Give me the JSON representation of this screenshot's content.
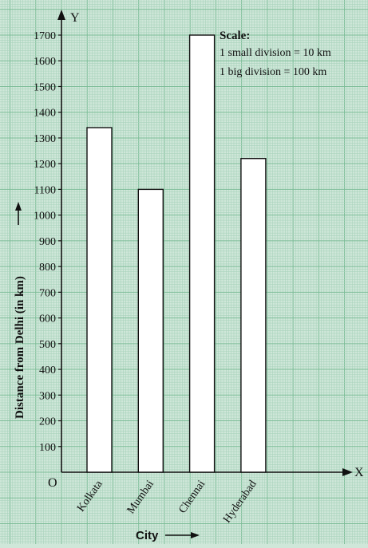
{
  "chart_data": {
    "type": "bar",
    "categories": [
      "Kolkata",
      "Mumbai",
      "Chennai",
      "Hyderabad"
    ],
    "values": [
      1340,
      1100,
      1700,
      1220
    ],
    "xlabel": "City",
    "ylabel": "Distance from Delhi (in km)",
    "ylim": [
      0,
      1700
    ],
    "yticks": [
      100,
      200,
      300,
      400,
      500,
      600,
      700,
      800,
      900,
      1000,
      1100,
      1200,
      1300,
      1400,
      1500,
      1600,
      1700
    ],
    "grid": true,
    "origin_label": "O",
    "x_axis_letter": "X",
    "y_axis_letter": "Y",
    "scale": {
      "title": "Scale:",
      "lines": [
        "1 small division = 10 km",
        "1 big division = 100 km"
      ]
    },
    "colors": {
      "grid_minor": "#a9d3bc",
      "grid_major": "#7dbd98",
      "background": "#cfe7d9",
      "bar_fill": "#ffffff",
      "bar_stroke": "#111111"
    }
  }
}
